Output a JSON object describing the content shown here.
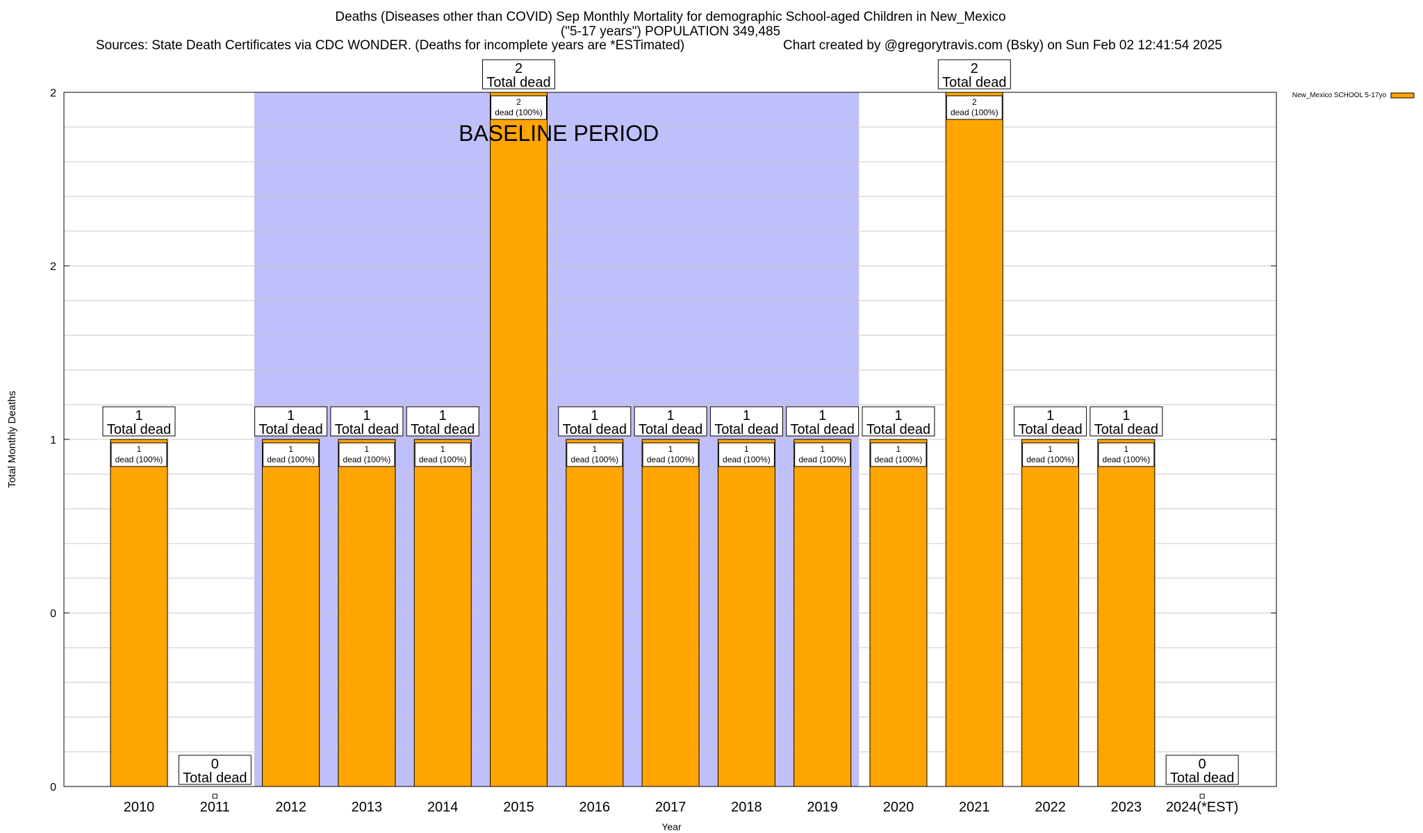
{
  "chart_data": {
    "type": "bar",
    "title_line1": "Deaths (Diseases other than COVID) Sep Monthly Mortality for demographic School-aged Children in New_Mexico",
    "title_line2": "(\"5-17 years\") POPULATION 349,485",
    "sources": "Sources: State Death Certificates via CDC WONDER. (Deaths for incomplete years are *ESTimated)",
    "credit": "Chart created by @gregorytravis.com (Bsky) on Sun Feb 02 12:41:54 2025",
    "xlabel": "Year",
    "ylabel": "Total Monthly Deaths",
    "categories": [
      "2010",
      "2011",
      "2012",
      "2013",
      "2014",
      "2015",
      "2016",
      "2017",
      "2018",
      "2019",
      "2020",
      "2021",
      "2022",
      "2023",
      "2024(*EST)"
    ],
    "series": [
      {
        "name": "New_Mexico SCHOOL 5-17yo",
        "color": "#ffa500",
        "values": [
          1,
          0,
          1,
          1,
          1,
          2,
          1,
          1,
          1,
          1,
          1,
          2,
          1,
          1,
          0
        ]
      }
    ],
    "ylim": [
      0,
      2
    ],
    "y_ticks": [
      {
        "value": 0,
        "label": "0"
      },
      {
        "value": 0.5,
        "label": "0"
      },
      {
        "value": 1,
        "label": "1"
      },
      {
        "value": 1.5,
        "label": "2"
      },
      {
        "value": 2,
        "label": "2"
      }
    ],
    "total_label_suffix": "Total dead",
    "inner_label_suffix": "dead (100%)",
    "baseline": {
      "label": "BASELINE PERIOD",
      "from": "2012",
      "to": "2019",
      "color": "#bfbffb"
    },
    "grid": true,
    "legend_position": "top-right"
  }
}
